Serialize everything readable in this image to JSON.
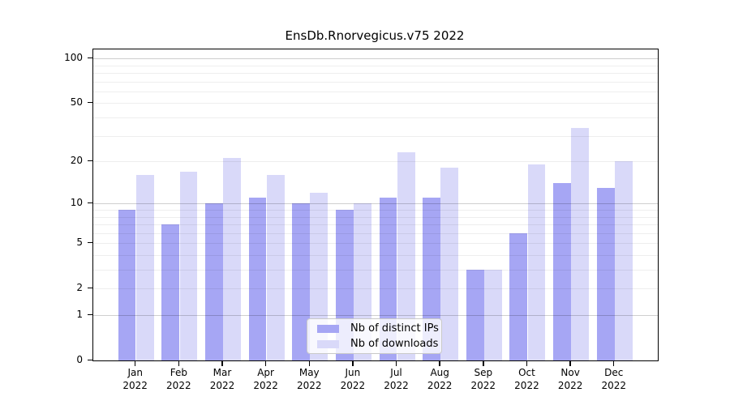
{
  "title": "EnsDb.Rnorvegicus.v75 2022",
  "chart_data": {
    "type": "bar",
    "title": "EnsDb.Rnorvegicus.v75 2022",
    "categories": [
      "Jan 2022",
      "Feb 2022",
      "Mar 2022",
      "Apr 2022",
      "May 2022",
      "Jun 2022",
      "Jul 2022",
      "Aug 2022",
      "Sep 2022",
      "Oct 2022",
      "Nov 2022",
      "Dec 2022"
    ],
    "series": [
      {
        "name": "Nb of distinct IPs",
        "color": "#a6a6f4",
        "values": [
          9,
          7,
          10,
          11,
          10,
          9,
          11,
          11,
          3,
          6,
          14,
          13
        ]
      },
      {
        "name": "Nb of downloads",
        "color": "#d9d9f9",
        "values": [
          16,
          17,
          21,
          16,
          12,
          10,
          23,
          18,
          3,
          19,
          34,
          20
        ]
      }
    ],
    "xlabel": "",
    "ylabel": "",
    "yscale": "log1p",
    "ylim": [
      0,
      115
    ],
    "y_ticks": [
      100,
      50,
      20,
      10,
      5,
      2,
      1,
      0
    ],
    "y_tick_labels": [
      "100",
      "50",
      "20",
      "10",
      "5",
      "2",
      "1",
      "0"
    ],
    "y_major_grid": [
      1,
      10,
      100
    ],
    "y_minor_grid": [
      2,
      3,
      4,
      5,
      6,
      7,
      8,
      9,
      20,
      30,
      40,
      50,
      60,
      70,
      80,
      90
    ],
    "grid": true,
    "legend_position": "bottom-center"
  },
  "legend": {
    "items": [
      {
        "label": "Nb of distinct IPs",
        "color": "#a6a6f4"
      },
      {
        "label": "Nb of downloads",
        "color": "#d9d9f9"
      }
    ]
  }
}
